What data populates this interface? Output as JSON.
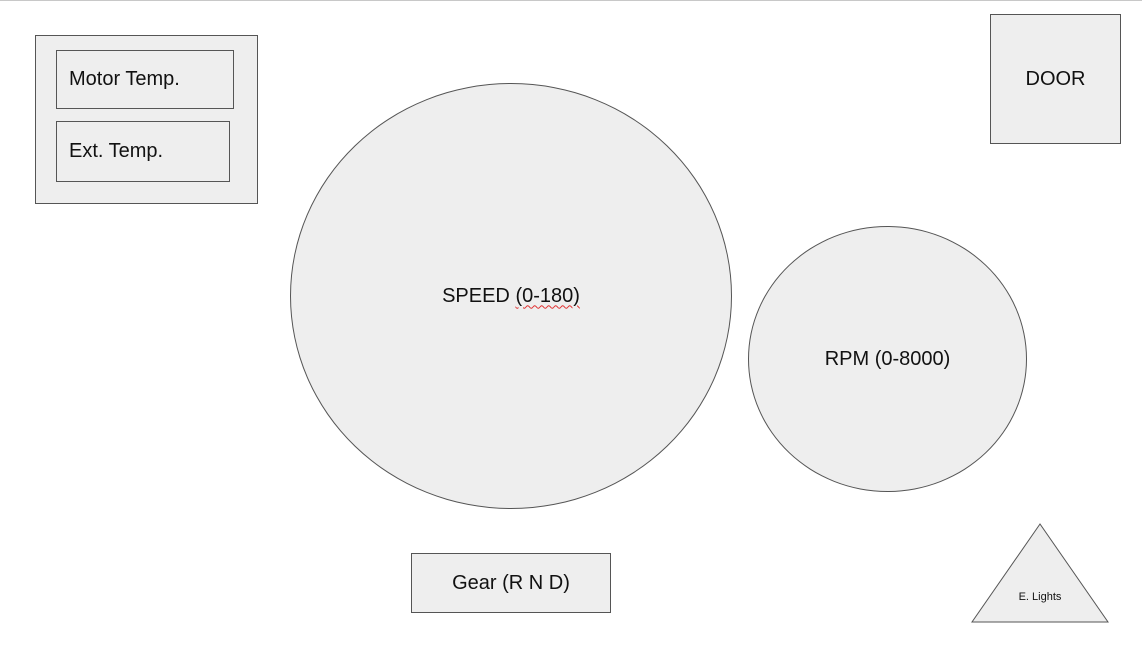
{
  "diagram": {
    "motor_temp_label": "Motor Temp.",
    "ext_temp_label": "Ext. Temp.",
    "door_label": "DOOR",
    "speed_label": "SPEED",
    "speed_range": "(0-180)",
    "rpm_label": "RPM (0-8000)",
    "gear_label": "Gear (R N D)",
    "lights_label": "E. Lights"
  },
  "colors": {
    "shape_fill": "#eeeeee",
    "shape_stroke": "#555555",
    "spellcheck_underline": "#e03030"
  }
}
